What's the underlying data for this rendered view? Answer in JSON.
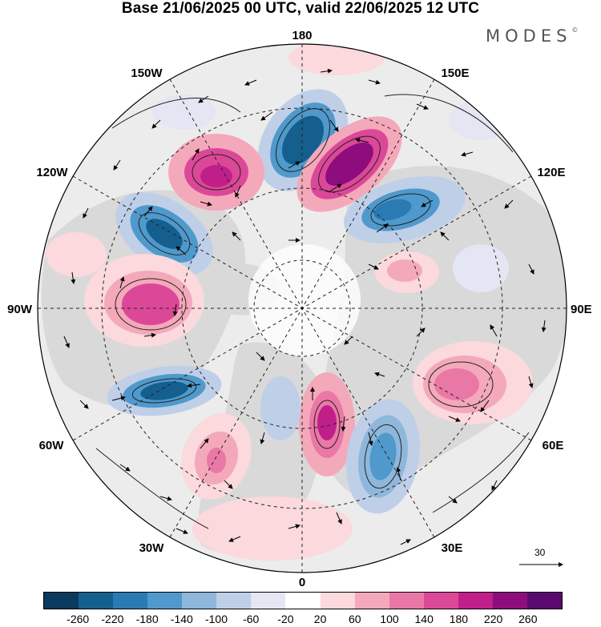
{
  "title": "Base 21/06/2025 00 UTC, valid 22/06/2025 12 UTC",
  "brand": "MODES",
  "brand_mark": "©",
  "longitude_labels": [
    {
      "text": "180",
      "key": "top"
    },
    {
      "text": "150E",
      "key": "ne1"
    },
    {
      "text": "120E",
      "key": "ne2"
    },
    {
      "text": "90E",
      "key": "right"
    },
    {
      "text": "60E",
      "key": "se2"
    },
    {
      "text": "30E",
      "key": "se1"
    },
    {
      "text": "0",
      "key": "bottom"
    },
    {
      "text": "30W",
      "key": "sw1"
    },
    {
      "text": "60W",
      "key": "sw2"
    },
    {
      "text": "90W",
      "key": "left"
    },
    {
      "text": "120W",
      "key": "nw2"
    },
    {
      "text": "150W",
      "key": "nw1"
    }
  ],
  "colorbar": {
    "ticks": [
      "-260",
      "-220",
      "-180",
      "-140",
      "-100",
      "-60",
      "-20",
      "20",
      "60",
      "100",
      "140",
      "180",
      "220",
      "260"
    ],
    "colors": [
      "#0b3a5e",
      "#155f8f",
      "#2a7ab4",
      "#4f99cc",
      "#8fb7dc",
      "#bfcfe8",
      "#e4e6f3",
      "#ffffff",
      "#fbd9dc",
      "#f4a9bb",
      "#ea78a6",
      "#dc4898",
      "#c01f8a",
      "#8e0d7d",
      "#5a0a6e"
    ]
  },
  "vector_reference": {
    "value": "30"
  },
  "colors": {
    "land": "#d8d8d8",
    "ocean": "#ececec",
    "negative": "#2a7ab4",
    "positive": "#c01f8a"
  }
}
